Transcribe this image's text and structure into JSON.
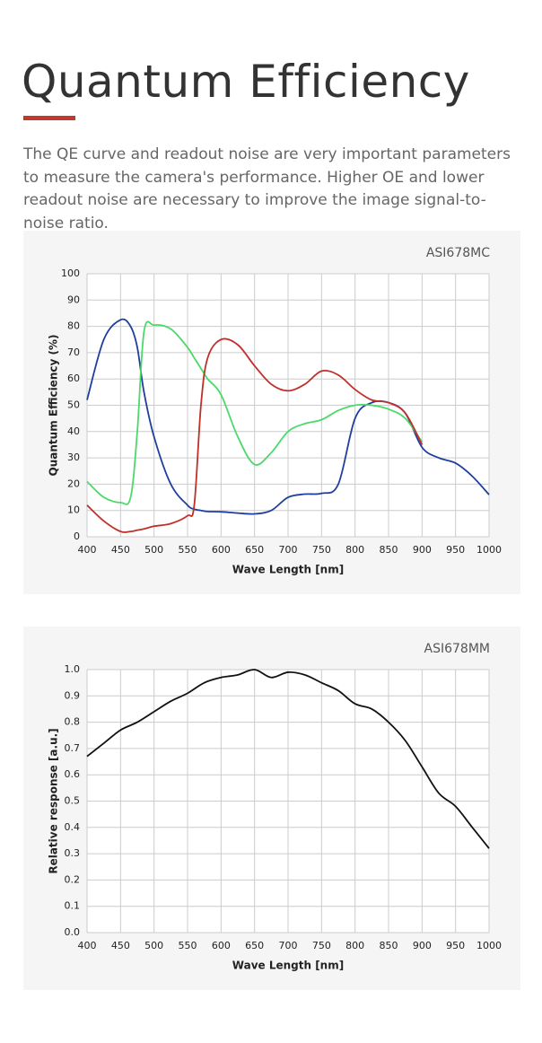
{
  "header": {
    "title": "Quantum Efficiency",
    "description": "The QE curve and readout noise are very important parameters to measure the camera's performance. Higher OE and lower readout noise are necessary to improve the image signal-to-noise ratio."
  },
  "chart_data": [
    {
      "type": "line",
      "title": "ASI678MC",
      "x_label": "Wave Length [nm]",
      "y_label": "Quantum Efficiency (%)",
      "x": [
        400,
        425,
        450,
        465,
        475,
        485,
        500,
        525,
        550,
        560,
        570,
        580,
        600,
        625,
        650,
        675,
        700,
        725,
        750,
        775,
        800,
        825,
        850,
        875,
        900,
        925,
        950,
        975,
        1000
      ],
      "series": [
        {
          "color": "#1f3fa0",
          "values": [
            52,
            75,
            82.5,
            80,
            72,
            55,
            38,
            20,
            12,
            10.5,
            10,
            9.6,
            9.5,
            9,
            8.7,
            10,
            15,
            16.2,
            16.5,
            20,
            45,
            51,
            51,
            47,
            34,
            30,
            28,
            23,
            16
          ]
        },
        {
          "color": "#4cd96a",
          "values": [
            21,
            15,
            13,
            15,
            40,
            78,
            80.5,
            79,
            72,
            68,
            64,
            60,
            54,
            38,
            27.5,
            32,
            40,
            43,
            44.5,
            48,
            50,
            50,
            48.5,
            45,
            36,
            null,
            null,
            null,
            null
          ]
        },
        {
          "color": "#c0302a",
          "values": [
            12,
            6,
            2,
            2,
            2.5,
            3,
            4,
            5,
            8,
            12,
            50,
            68,
            75,
            73,
            65,
            58,
            55.5,
            58,
            63,
            61.5,
            56,
            52,
            51,
            47,
            35,
            null,
            null,
            null,
            null
          ]
        }
      ],
      "xlim": [
        400,
        1000
      ],
      "ylim": [
        0,
        100
      ],
      "xticks": [
        400,
        450,
        500,
        550,
        600,
        650,
        700,
        750,
        800,
        850,
        900,
        950,
        1000
      ],
      "yticks": [
        0,
        10,
        20,
        30,
        40,
        50,
        60,
        70,
        80,
        90,
        100
      ],
      "grid": true
    },
    {
      "type": "line",
      "title": "ASI678MM",
      "x_label": "Wave Length [nm]",
      "y_label": "Relative response [a.u.]",
      "x": [
        400,
        425,
        450,
        475,
        500,
        525,
        550,
        575,
        600,
        625,
        650,
        675,
        700,
        725,
        750,
        775,
        800,
        825,
        850,
        875,
        900,
        925,
        950,
        975,
        1000
      ],
      "series": [
        {
          "color": "#111111",
          "values": [
            0.67,
            0.72,
            0.77,
            0.8,
            0.84,
            0.88,
            0.91,
            0.95,
            0.97,
            0.98,
            1.0,
            0.97,
            0.99,
            0.98,
            0.95,
            0.92,
            0.87,
            0.85,
            0.8,
            0.73,
            0.63,
            0.53,
            0.48,
            0.4,
            0.32
          ]
        }
      ],
      "xlim": [
        400,
        1000
      ],
      "ylim": [
        0,
        1
      ],
      "xticks": [
        400,
        450,
        500,
        550,
        600,
        650,
        700,
        750,
        800,
        850,
        900,
        950,
        1000
      ],
      "yticks": [
        {
          "value": 0,
          "label": "0.0"
        },
        0.1,
        0.2,
        0.3,
        0.4,
        0.5,
        0.6,
        0.7,
        0.8,
        0.9,
        {
          "value": 1,
          "label": "1.0"
        }
      ],
      "grid": true
    }
  ]
}
